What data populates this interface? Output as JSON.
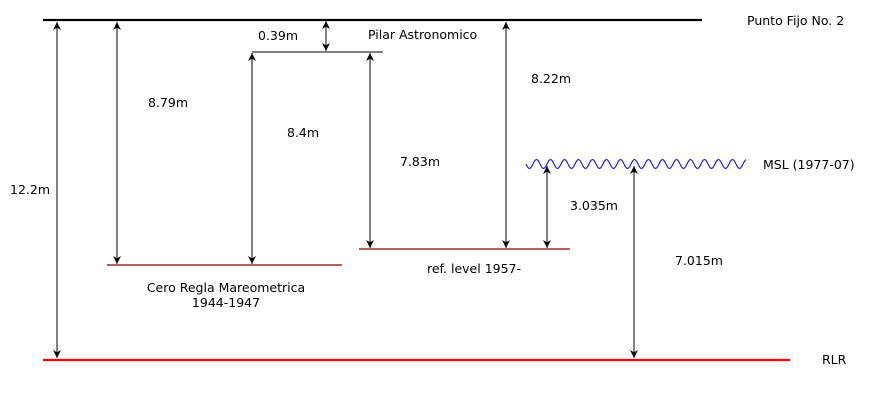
{
  "colors": {
    "line": "#000000",
    "reference_level": "#880000",
    "rlr": "#ff0000",
    "msl_wave": "#0000ff"
  },
  "levels": {
    "punto_fijo": "Punto Fijo No. 2",
    "pilar": "Pilar Astronomico",
    "msl": "MSL (1977-07)",
    "rlr": "RLR",
    "cero_regla_line1": "Cero Regla Mareometrica",
    "cero_regla_line2": "1944-1947",
    "ref_level": "ref. level 1957-"
  },
  "measurements": {
    "total": "12.2m",
    "punto_to_cero_regla": "8.79m",
    "punto_to_pilar": "0.39m",
    "pilar_to_cero_regla": "8.4m",
    "pilar_to_ref_level": "7.83m",
    "punto_to_ref_level": "8.22m",
    "ref_level_to_msl": "3.035m",
    "msl_to_rlr": "7.015m"
  }
}
